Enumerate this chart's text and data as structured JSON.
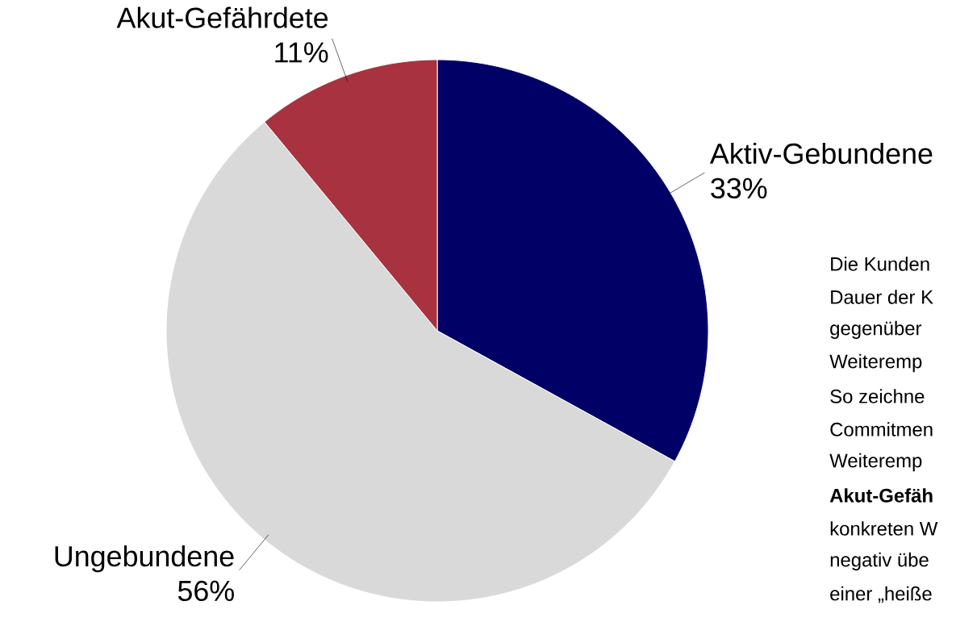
{
  "chart_data": {
    "type": "pie",
    "categories": [
      "Aktiv-Gebundene",
      "Ungebundene",
      "Akut-Gefährdete"
    ],
    "values": [
      33,
      56,
      11
    ],
    "colors": [
      "#000066",
      "#d9d9d9",
      "#a83240"
    ],
    "value_labels": [
      "33%",
      "56%",
      "11%"
    ],
    "annotations": [
      "Die Kunden",
      "Dauer der K",
      "gegenüber",
      "Weiteremp",
      "So zeichne",
      "Commitmen",
      "Weiteremp",
      "**Akut-Gefäh**",
      "konkreten W",
      "negativ übe",
      "einer „heiße"
    ]
  }
}
